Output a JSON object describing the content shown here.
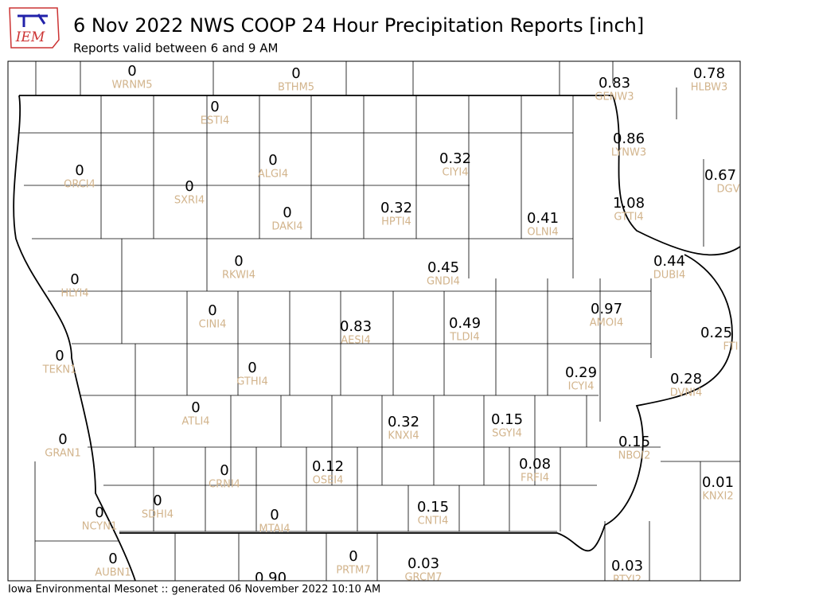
{
  "header": {
    "logo": "IEM",
    "title": "6 Nov 2022 NWS COOP 24 Hour Precipitation Reports [inch]",
    "subtitle": "Reports valid between 6 and 9 AM"
  },
  "stations": [
    {
      "value": "0",
      "id": "WRNM5"
    },
    {
      "value": "0",
      "id": "BTHM5"
    },
    {
      "value": "0.83",
      "id": "GENW3"
    },
    {
      "value": "0.78",
      "id": "HLBW3"
    },
    {
      "value": "0",
      "id": "ESTI4"
    },
    {
      "value": "0.86",
      "id": "LYNW3"
    },
    {
      "value": "0.32",
      "id": "CIYI4"
    },
    {
      "value": "0",
      "id": "ALGI4"
    },
    {
      "value": "0",
      "id": "ORCI4"
    },
    {
      "value": "0",
      "id": "SXRI4"
    },
    {
      "value": "0.67",
      "id": "DGV"
    },
    {
      "value": "1.08",
      "id": "GTTI4"
    },
    {
      "value": "0",
      "id": "DAKI4"
    },
    {
      "value": "0.32",
      "id": "HPTI4"
    },
    {
      "value": "0.41",
      "id": "OLNI4"
    },
    {
      "value": "0",
      "id": "RKWI4"
    },
    {
      "value": "0.45",
      "id": "GNDI4"
    },
    {
      "value": "0.44",
      "id": "DUBI4"
    },
    {
      "value": "0",
      "id": "HLYI4"
    },
    {
      "value": "0",
      "id": "CINI4"
    },
    {
      "value": "0.97",
      "id": "AMOI4"
    },
    {
      "value": "0.83",
      "id": "AESI4"
    },
    {
      "value": "0.49",
      "id": "TLDI4"
    },
    {
      "value": "0.25",
      "id": "FTI"
    },
    {
      "value": "0",
      "id": "TEKN1"
    },
    {
      "value": "0",
      "id": "GTHI4"
    },
    {
      "value": "0.29",
      "id": "ICYI4"
    },
    {
      "value": "0.28",
      "id": "DVNI4"
    },
    {
      "value": "0",
      "id": "ATLI4"
    },
    {
      "value": "0.32",
      "id": "KNXI4"
    },
    {
      "value": "0.15",
      "id": "SGYI4"
    },
    {
      "value": "0",
      "id": "GRAN1"
    },
    {
      "value": "0.15",
      "id": "NBOI2"
    },
    {
      "value": "0.12",
      "id": "OSEI4"
    },
    {
      "value": "0",
      "id": "CRNI4"
    },
    {
      "value": "0.08",
      "id": "FRFI4"
    },
    {
      "value": "0.01",
      "id": "KNXI2"
    },
    {
      "value": "0",
      "id": "SDHI4"
    },
    {
      "value": "0.15",
      "id": "CNTI4"
    },
    {
      "value": "0",
      "id": "MTAI4"
    },
    {
      "value": "0",
      "id": "NCYN1"
    },
    {
      "value": "0",
      "id": "AUBN1"
    },
    {
      "value": "0",
      "id": "PRTM7"
    },
    {
      "value": "0.03",
      "id": "GRCM7"
    },
    {
      "value": "0.03",
      "id": "RTYI2"
    },
    {
      "value": "0.90"
    }
  ],
  "footer": "Iowa Environmental Mesonet :: generated 06 November 2022 10:10 AM"
}
